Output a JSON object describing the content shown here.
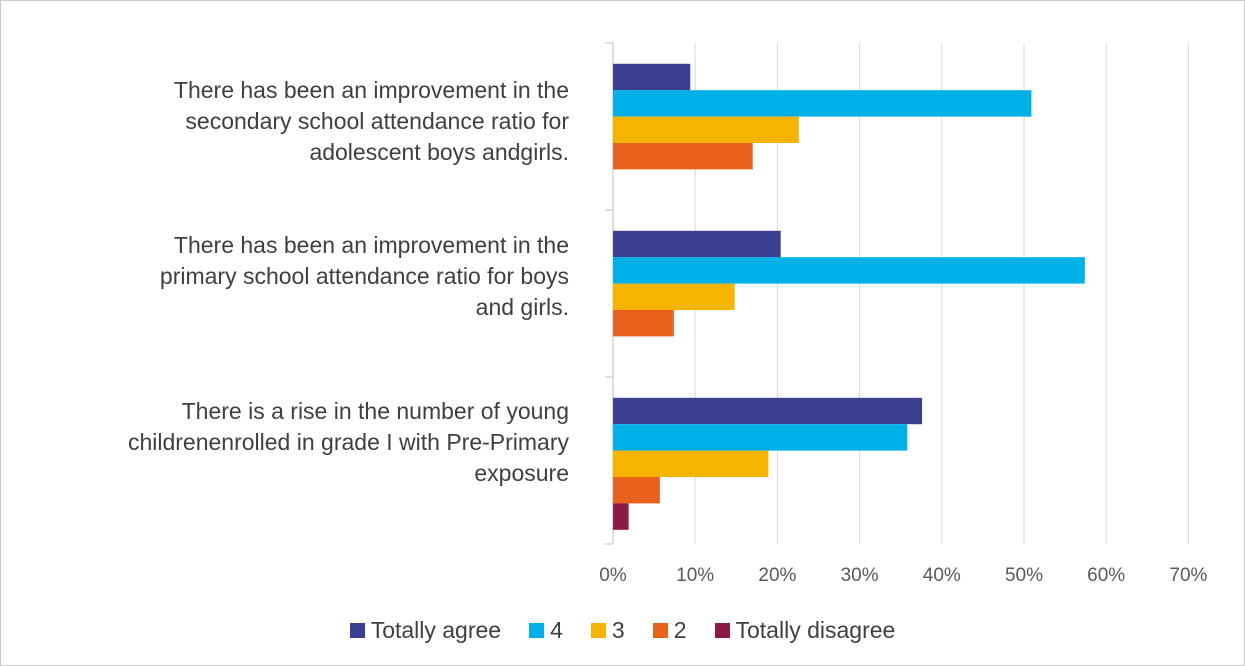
{
  "chart_data": {
    "type": "bar",
    "orientation": "horizontal",
    "categories": [
      "There has been an improvement in the secondary school attendance ratio for adolescent boys andgirls.",
      "There has been an improvement in the primary school attendance ratio for boys and girls.",
      "There is a rise in the number of young childrenenrolled in grade I with Pre-Primary exposure"
    ],
    "category_lines": [
      [
        "There has been an improvement in the",
        "secondary school attendance ratio for",
        "adolescent boys andgirls."
      ],
      [
        "There has been an improvement in the",
        "primary school attendance ratio for boys",
        "and girls."
      ],
      [
        "There is a rise in the number of young",
        "childrenenrolled in grade I with Pre-Primary",
        "exposure"
      ]
    ],
    "series": [
      {
        "name": "Totally agree",
        "color": "#3b3f8f",
        "values": [
          9.4,
          20.4,
          37.6
        ]
      },
      {
        "name": "4",
        "color": "#00b0e6",
        "values": [
          50.9,
          57.4,
          35.8
        ]
      },
      {
        "name": "3",
        "color": "#f5b400",
        "values": [
          22.6,
          14.8,
          18.9
        ]
      },
      {
        "name": "2",
        "color": "#e8621e",
        "values": [
          17.0,
          7.4,
          5.7
        ]
      },
      {
        "name": "Totally disagree",
        "color": "#8b1a47",
        "values": [
          0,
          0,
          1.9
        ]
      }
    ],
    "xlim": [
      0,
      70
    ],
    "xticks": [
      "0%",
      "10%",
      "20%",
      "30%",
      "40%",
      "50%",
      "60%",
      "70%"
    ],
    "grid": true,
    "legend_position": "bottom"
  }
}
